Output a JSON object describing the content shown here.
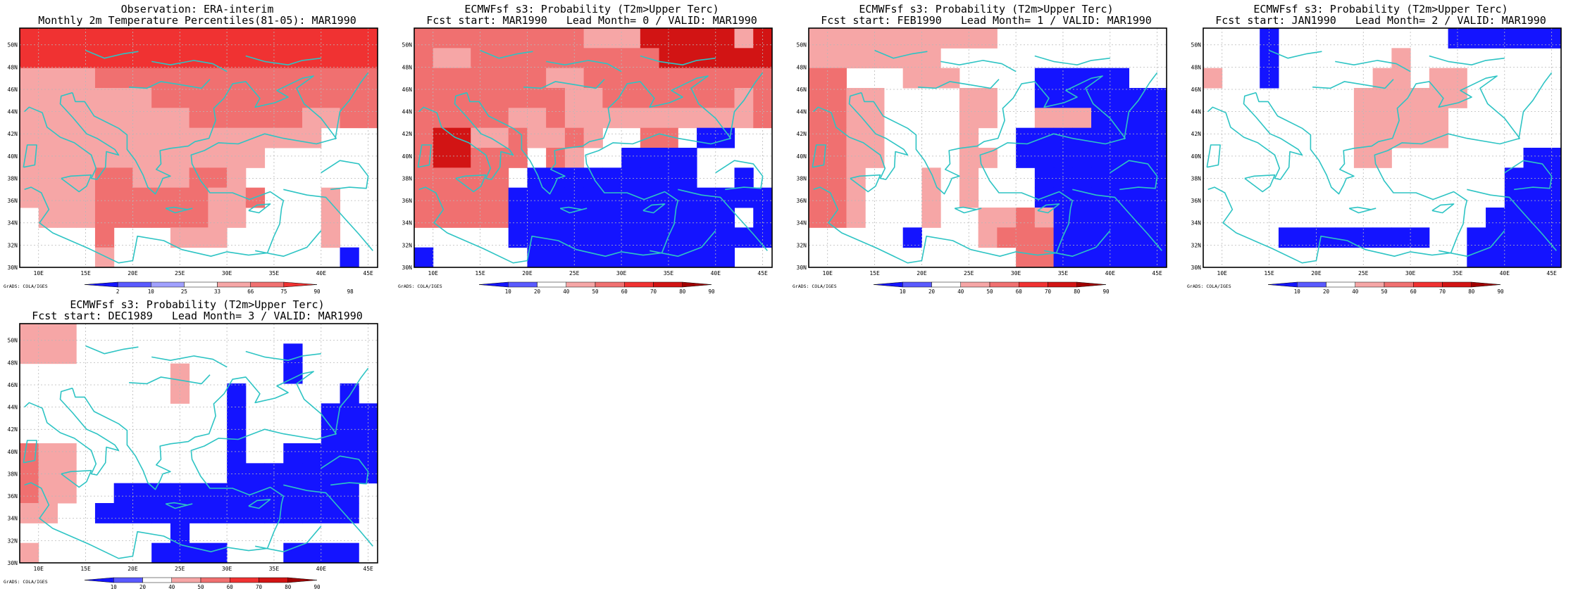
{
  "domain": "Map",
  "colors": {
    "coast": "#2ec4c4",
    "frame": "#000000",
    "blue_dark": "#1414ff",
    "blue_mid": "#5a5aff",
    "blue_light": "#a0a0ff",
    "red_light": "#f6a6a6",
    "red_mid": "#f07070",
    "red_strong": "#f03232",
    "red_deep": "#d21414",
    "red_darker": "#a00000"
  },
  "axis_labels": {
    "x": [
      "10E",
      "15E",
      "20E",
      "25E",
      "30E",
      "35E",
      "40E",
      "45E"
    ],
    "y": [
      "30N",
      "32N",
      "34N",
      "36N",
      "38N",
      "40N",
      "42N",
      "44N",
      "46N",
      "48N",
      "50N"
    ]
  },
  "grads_label": "GrADS: COLA/IGES",
  "panels": [
    {
      "id": "obs",
      "title1": "Observation: ERA-interim",
      "title2": "Monthly 2m Temperature Percentiles(81-05): MAR1990",
      "colorbar": {
        "labels": [
          "2",
          "10",
          "25",
          "33",
          "66",
          "75",
          "90",
          "98"
        ],
        "colors": [
          "#1414ff",
          "#5a5aff",
          "#a0a0ff",
          "#ffffff",
          "#f6a6a6",
          "#f07070",
          "#f03232"
        ]
      },
      "grid": [
        "rrrrrrrrrrrrrrrrrrr",
        "rrrrrrrrrrrrrrrrrrr",
        "mmmmRRRRRRRRRRRRRRR",
        "mmmmmmmRRRRRRRRRRRR",
        "mmmmmmmmmRRRRRRmmRR",
        "mmmmmmmmmmmmmmmmwww",
        "mmmmmmmmmmmmmwwwwww",
        "mmmmRRmmmRRmwwwwwww",
        "mmmmRRRRRRmmRwwwmww",
        "wmmmRRRRRRmmwwwwmww",
        "wwwwRwwwmmmwwwwwmww",
        "wwwwmwwwwwwwwwwwwbw"
      ]
    },
    {
      "id": "lead0",
      "title1": "ECMWFsf s3: Probability (T2m>Upper Terc)",
      "title2": "Fcst start: MAR1990   Lead Month= 0 / VALID: MAR1990",
      "colorbar": {
        "labels": [
          "10",
          "20",
          "40",
          "50",
          "60",
          "70",
          "80",
          "90"
        ],
        "colors": [
          "#1414ff",
          "#5a5aff",
          "#ffffff",
          "#f6a6a6",
          "#f07070",
          "#f03232",
          "#d21414",
          "#a00000"
        ]
      },
      "grid": [
        "RRRRRRRRRmmmDDDDDmD",
        "RmmRRRRRRRRRRDDDDDD",
        "RRRRRRRmmRRRRRRRRRR",
        "RRRRRRRRmmRRRRRRRmR",
        "RRRRRmmRmmmmmmmmmmR",
        "RDDmmRmmRmwwRRwbbww",
        "RDDRRRwRmwwbbbbwwww",
        "RRRRRwbbbbbbbbbwwbw",
        "RRRRRbbbbbbbbbbbbbb",
        "RRRRRbbbbbbbbbbbbwb",
        "wwwwwbbbbbbbbbbbbbb",
        "bwwwwwbbbbbbbbbbbww"
      ]
    },
    {
      "id": "lead1",
      "title1": "ECMWFsf s3: Probability (T2m>Upper Terc)",
      "title2": "Fcst start: FEB1990   Lead Month= 1 / VALID: MAR1990",
      "colorbar": {
        "labels": [
          "10",
          "20",
          "40",
          "50",
          "60",
          "70",
          "80",
          "90"
        ],
        "colors": [
          "#1414ff",
          "#5a5aff",
          "#ffffff",
          "#f6a6a6",
          "#f07070",
          "#f03232",
          "#d21414",
          "#a00000"
        ]
      },
      "grid": [
        "mmmmmmmmmmwwwwwwwww",
        "mmmmmmmwwwwwwwwwwww",
        "RRwwwmmmwwwwbbbbbww",
        "RRmmwwwwmmwwbbbbbbb",
        "RRmmwwwwmmwwmmmbbbb",
        "RRmmwwwwmwwbbbbbbbb",
        "RRmmwwwwmmwbbbbbbbb",
        "RRmwwwmwmwwwbbbbbbb",
        "RRmwwwmwmwwwbbbbbbb",
        "RRmwwwmwwmmRmbbbbbb",
        "wwwwwbwwwmRRRbbbbbb",
        "wwwwwwwwwwwRRbbbbbb"
      ]
    },
    {
      "id": "lead2",
      "title1": "ECMWFsf s3: Probability (T2m>Upper Terc)",
      "title2": "Fcst start: JAN1990   Lead Month= 2 / VALID: MAR1990",
      "colorbar": {
        "labels": [
          "10",
          "20",
          "40",
          "50",
          "60",
          "70",
          "80",
          "90"
        ],
        "colors": [
          "#1414ff",
          "#5a5aff",
          "#ffffff",
          "#f6a6a6",
          "#f07070",
          "#f03232",
          "#d21414",
          "#a00000"
        ]
      },
      "grid": [
        "wwwbwwwwwwwwwbbbbbb",
        "wwwbwwwwwwmwwwwwwww",
        "mwwbwwwwwmmwmmwwwww",
        "wwwwwwwwmmmmmmwwwww",
        "wwwwwwwwmmmmmwwwwww",
        "wwwwwwwwmmmmmwwwwww",
        "wwwwwwwwmmwwwwwwwbb",
        "wwwwwwwwwwwwwwwwbbb",
        "wwwwwwwwwwwwwwwwbbb",
        "wwwwwwwwwwwwwwwbbbb",
        "wwwwbbbbbbbbwwbbbbb",
        "wwwwwwwwwwwwwwbbbbb"
      ]
    },
    {
      "id": "lead3",
      "title1": "ECMWFsf s3: Probability (T2m>Upper Terc)",
      "title2": "Fcst start: DEC1989   Lead Month= 3 / VALID: MAR1990",
      "colorbar": {
        "labels": [
          "10",
          "20",
          "40",
          "50",
          "60",
          "70",
          "80",
          "90"
        ],
        "colors": [
          "#1414ff",
          "#5a5aff",
          "#ffffff",
          "#f6a6a6",
          "#f07070",
          "#f03232",
          "#d21414",
          "#a00000"
        ]
      },
      "grid": [
        "mmmwwwwwwwwwwwwwwww",
        "mmmwwwwwwwwwwwbwwww",
        "wwwwwwwwmwwwwwbwwww",
        "wwwwwwwwmwwbwwwwwbw",
        "wwwwwwwwwwwbwwwwbbb",
        "wwwwwwwwwwwbwwwwbbb",
        "Rmmwwwwwwwwbwwbbbbb",
        "Rmmwwwwwwwwbbbbbbbb",
        "Rmmwwbbbbbbbbbbbbbw",
        "mmwwbbbbbbbbbbbbbbw",
        "wwwwwwwwbwwwwwwwwww",
        "mwwwwwwbbbbwwwbbbbw"
      ]
    }
  ]
}
